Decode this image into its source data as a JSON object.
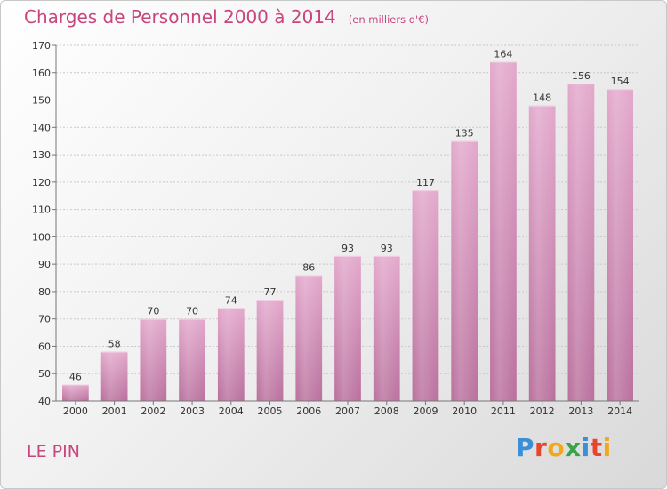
{
  "chart_data": {
    "type": "bar",
    "title": "Charges de Personnel 2000 à 2014",
    "subtitle": "(en milliers d'€)",
    "categories": [
      "2000",
      "2001",
      "2002",
      "2003",
      "2004",
      "2005",
      "2006",
      "2007",
      "2008",
      "2009",
      "2010",
      "2011",
      "2012",
      "2013",
      "2014"
    ],
    "values": [
      46,
      58,
      70,
      70,
      74,
      77,
      86,
      93,
      93,
      117,
      135,
      164,
      148,
      156,
      154
    ],
    "ylim": [
      40,
      170
    ],
    "yticks": [
      40,
      50,
      60,
      70,
      80,
      90,
      100,
      110,
      120,
      130,
      140,
      150,
      160,
      170
    ],
    "grid": true,
    "bar_color": "#d88fba"
  },
  "commune": "LE PIN",
  "logo": {
    "text": "Proxiti",
    "letters": [
      {
        "ch": "P",
        "color": "#3a8fd6"
      },
      {
        "ch": "r",
        "color": "#e8452c"
      },
      {
        "ch": "o",
        "color": "#f2a81d"
      },
      {
        "ch": "x",
        "color": "#3aa34a"
      },
      {
        "ch": "i",
        "color": "#3a8fd6"
      },
      {
        "ch": "t",
        "color": "#e8452c"
      },
      {
        "ch": "i",
        "color": "#f2a81d"
      }
    ]
  }
}
